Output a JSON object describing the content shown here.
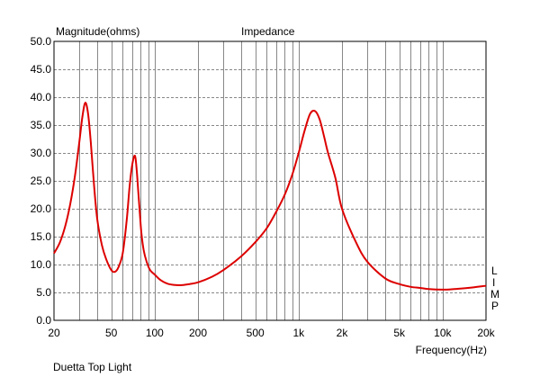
{
  "chart_data": {
    "type": "line",
    "title": "Impedance",
    "ylabel": "Magnitude(ohms)",
    "xlabel": "Frequency(Hz)",
    "caption": "Duetta Top Light",
    "side_label": [
      "L",
      "I",
      "M",
      "P"
    ],
    "x_scale": "log",
    "xlim": [
      20,
      20000
    ],
    "ylim": [
      0,
      50
    ],
    "grid": true,
    "y_ticks": [
      "0.0",
      "5.0",
      "10.0",
      "15.0",
      "20.0",
      "25.0",
      "30.0",
      "35.0",
      "40.0",
      "45.0",
      "50.0"
    ],
    "x_ticks": [
      {
        "value": 20,
        "label": "20"
      },
      {
        "value": 50,
        "label": "50"
      },
      {
        "value": 100,
        "label": "100"
      },
      {
        "value": 200,
        "label": "200"
      },
      {
        "value": 500,
        "label": "500"
      },
      {
        "value": 1000,
        "label": "1k"
      },
      {
        "value": 2000,
        "label": "2k"
      },
      {
        "value": 5000,
        "label": "5k"
      },
      {
        "value": 10000,
        "label": "10k"
      },
      {
        "value": 20000,
        "label": "20k"
      }
    ],
    "series": [
      {
        "color": "#dd0000",
        "x": [
          20,
          22,
          24,
          26,
          28,
          30,
          31.5,
          33,
          34.5,
          36,
          38,
          40,
          43,
          46,
          50,
          53,
          56,
          60,
          64,
          67,
          70,
          73,
          75,
          77,
          79,
          81,
          84,
          88,
          93,
          100,
          110,
          125,
          150,
          175,
          200,
          250,
          300,
          400,
          500,
          600,
          700,
          800,
          900,
          1000,
          1100,
          1200,
          1300,
          1400,
          1500,
          1600,
          1800,
          2000,
          2500,
          3000,
          4000,
          5000,
          6000,
          7000,
          8000,
          10000,
          12000,
          15000,
          20000
        ],
        "y": [
          12,
          14,
          17,
          21,
          26,
          32,
          36.5,
          39,
          37,
          32,
          24,
          18,
          13.5,
          11,
          9,
          8.7,
          9.5,
          12,
          18,
          24,
          28,
          29.5,
          27,
          23,
          19,
          15.5,
          12.5,
          10.5,
          9,
          8.2,
          7.2,
          6.5,
          6.3,
          6.5,
          6.8,
          7.8,
          9,
          11.5,
          14,
          16.5,
          19.5,
          22.5,
          26,
          30,
          34,
          37,
          37.5,
          36,
          33,
          30,
          25.5,
          20,
          14,
          10.5,
          7.5,
          6.5,
          6,
          5.8,
          5.6,
          5.5,
          5.6,
          5.8,
          6.2
        ]
      }
    ]
  }
}
